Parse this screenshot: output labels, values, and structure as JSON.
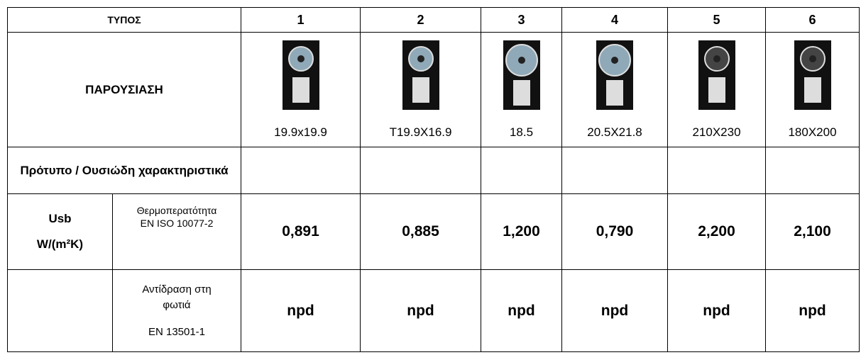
{
  "header": {
    "label": "ΤΥΠΟΣ",
    "types": [
      "1",
      "2",
      "3",
      "4",
      "5",
      "6"
    ]
  },
  "presentation": {
    "label": "ΠΑΡΟΥΣΙΑΣΗ",
    "sizes": [
      "19.9x19.9",
      "T19.9X16.9",
      "18.5",
      "20.5X21.8",
      "210X230",
      "180X200"
    ]
  },
  "standard_row": {
    "label": "Πρότυπο / Ουσιώδη χαρακτηριστικά"
  },
  "usb_row": {
    "label": "Usb",
    "unit": "W/(m²K)",
    "property": "Θερμοπερατότητα",
    "standard": "EN ISO 10077-2",
    "values": [
      "0,891",
      "0,885",
      "1,200",
      "0,790",
      "2,200",
      "2,100"
    ]
  },
  "fire_row": {
    "property": "Αντίδραση στη φωτιά",
    "standard": "EN 13501-1",
    "values": [
      "npd",
      "npd",
      "npd",
      "npd",
      "npd",
      "npd"
    ]
  }
}
